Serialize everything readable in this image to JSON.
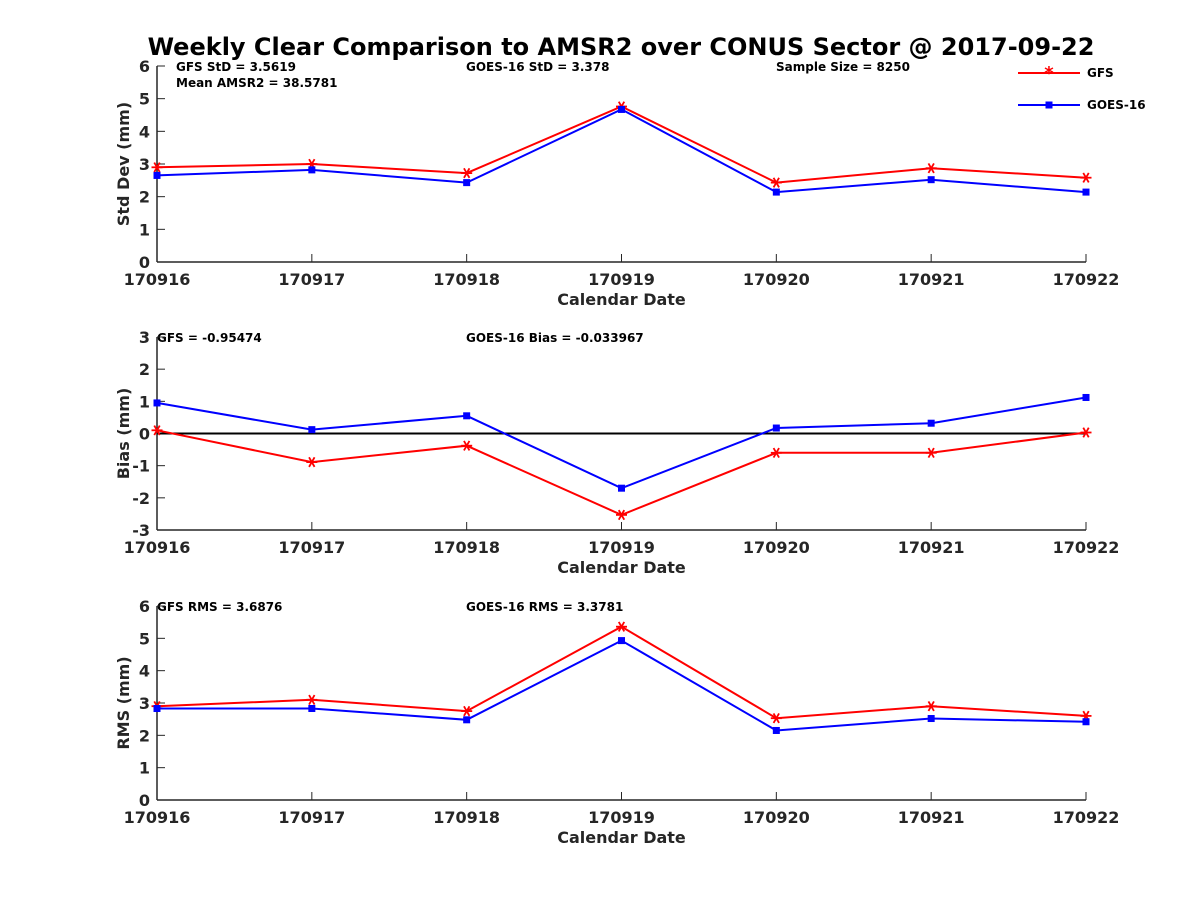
{
  "figure": {
    "title": "Weekly Clear Comparison to AMSR2 over CONUS Sector @ 2017-09-22"
  },
  "legend": {
    "position": "top-right",
    "items": [
      {
        "label": "GFS",
        "color": "#ff0000",
        "marker": "asterisk"
      },
      {
        "label": "GOES-16",
        "color": "#0000ff",
        "marker": "square"
      }
    ]
  },
  "annotations": {
    "std": [
      "GFS StD = 3.5619",
      "Mean AMSR2 = 38.5781",
      "GOES-16 StD = 3.378",
      "Sample Size = 8250"
    ],
    "bias": [
      "GFS = -0.95474",
      "GOES-16 Bias  = -0.033967"
    ],
    "rms": [
      "GFS RMS = 3.6876",
      "GOES-16 RMS = 3.3781"
    ]
  },
  "chart_data": [
    {
      "type": "line",
      "panel": "std",
      "categories": [
        "170916",
        "170917",
        "170918",
        "170919",
        "170920",
        "170921",
        "170922"
      ],
      "xlabel": "Calendar Date",
      "ylabel": "Std Dev (mm)",
      "ylim": [
        0,
        6
      ],
      "yticks": [
        0,
        1,
        2,
        3,
        4,
        5,
        6
      ],
      "grid": false,
      "zero_line": false,
      "series": [
        {
          "name": "GFS",
          "color": "#ff0000",
          "marker": "asterisk",
          "values": [
            2.9,
            3.0,
            2.72,
            4.76,
            2.43,
            2.87,
            2.58
          ]
        },
        {
          "name": "GOES-16",
          "color": "#0000ff",
          "marker": "square",
          "values": [
            2.65,
            2.82,
            2.43,
            4.67,
            2.14,
            2.52,
            2.14
          ]
        }
      ]
    },
    {
      "type": "line",
      "panel": "bias",
      "categories": [
        "170916",
        "170917",
        "170918",
        "170919",
        "170920",
        "170921",
        "170922"
      ],
      "xlabel": "Calendar Date",
      "ylabel": "Bias (mm)",
      "ylim": [
        -3,
        3
      ],
      "yticks": [
        -3,
        -2,
        -1,
        0,
        1,
        2,
        3
      ],
      "grid": false,
      "zero_line": true,
      "series": [
        {
          "name": "GFS",
          "color": "#ff0000",
          "marker": "asterisk",
          "values": [
            0.1,
            -0.89,
            -0.38,
            -2.53,
            -0.6,
            -0.6,
            0.03
          ]
        },
        {
          "name": "GOES-16",
          "color": "#0000ff",
          "marker": "square",
          "values": [
            0.95,
            0.12,
            0.55,
            -1.7,
            0.17,
            0.32,
            1.12
          ]
        }
      ]
    },
    {
      "type": "line",
      "panel": "rms",
      "categories": [
        "170916",
        "170917",
        "170918",
        "170919",
        "170920",
        "170921",
        "170922"
      ],
      "xlabel": "Calendar Date",
      "ylabel": "RMS (mm)",
      "ylim": [
        0,
        6
      ],
      "yticks": [
        0,
        1,
        2,
        3,
        4,
        5,
        6
      ],
      "grid": false,
      "zero_line": false,
      "series": [
        {
          "name": "GFS",
          "color": "#ff0000",
          "marker": "asterisk",
          "values": [
            2.9,
            3.1,
            2.75,
            5.36,
            2.53,
            2.9,
            2.6
          ]
        },
        {
          "name": "GOES-16",
          "color": "#0000ff",
          "marker": "square",
          "values": [
            2.83,
            2.83,
            2.48,
            4.93,
            2.15,
            2.52,
            2.42
          ]
        }
      ]
    }
  ]
}
